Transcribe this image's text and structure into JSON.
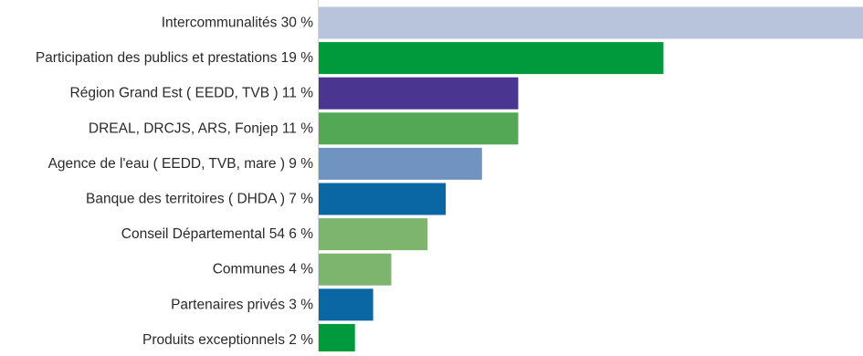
{
  "chart_data": {
    "type": "bar",
    "orientation": "horizontal",
    "categories": [
      "Intercommunalités 30 %",
      "Participation des publics et prestations 19 %",
      "Région Grand Est ( EEDD, TVB ) 11 %",
      "DREAL, DRCJS, ARS, Fonjep 11 %",
      "Agence de l'eau ( EEDD, TVB, mare ) 9 %",
      "Banque des territoires ( DHDA ) 7 %",
      "Conseil Départemental 54 6 %",
      "Communes 4 %",
      "Partenaires privés 3 %",
      "Produits exceptionnels 2 %"
    ],
    "values": [
      30,
      19,
      11,
      11,
      9,
      7,
      6,
      4,
      3,
      2
    ],
    "colors": [
      "#b8c3dc",
      "#009a3d",
      "#4a3690",
      "#52a855",
      "#7193c2",
      "#0a67a3",
      "#7db56e",
      "#7db56e",
      "#0a67a3",
      "#009a3d"
    ],
    "title": "",
    "xlabel": "",
    "ylabel": "",
    "xlim": [
      0,
      30
    ],
    "grid": false,
    "legend": "none"
  }
}
